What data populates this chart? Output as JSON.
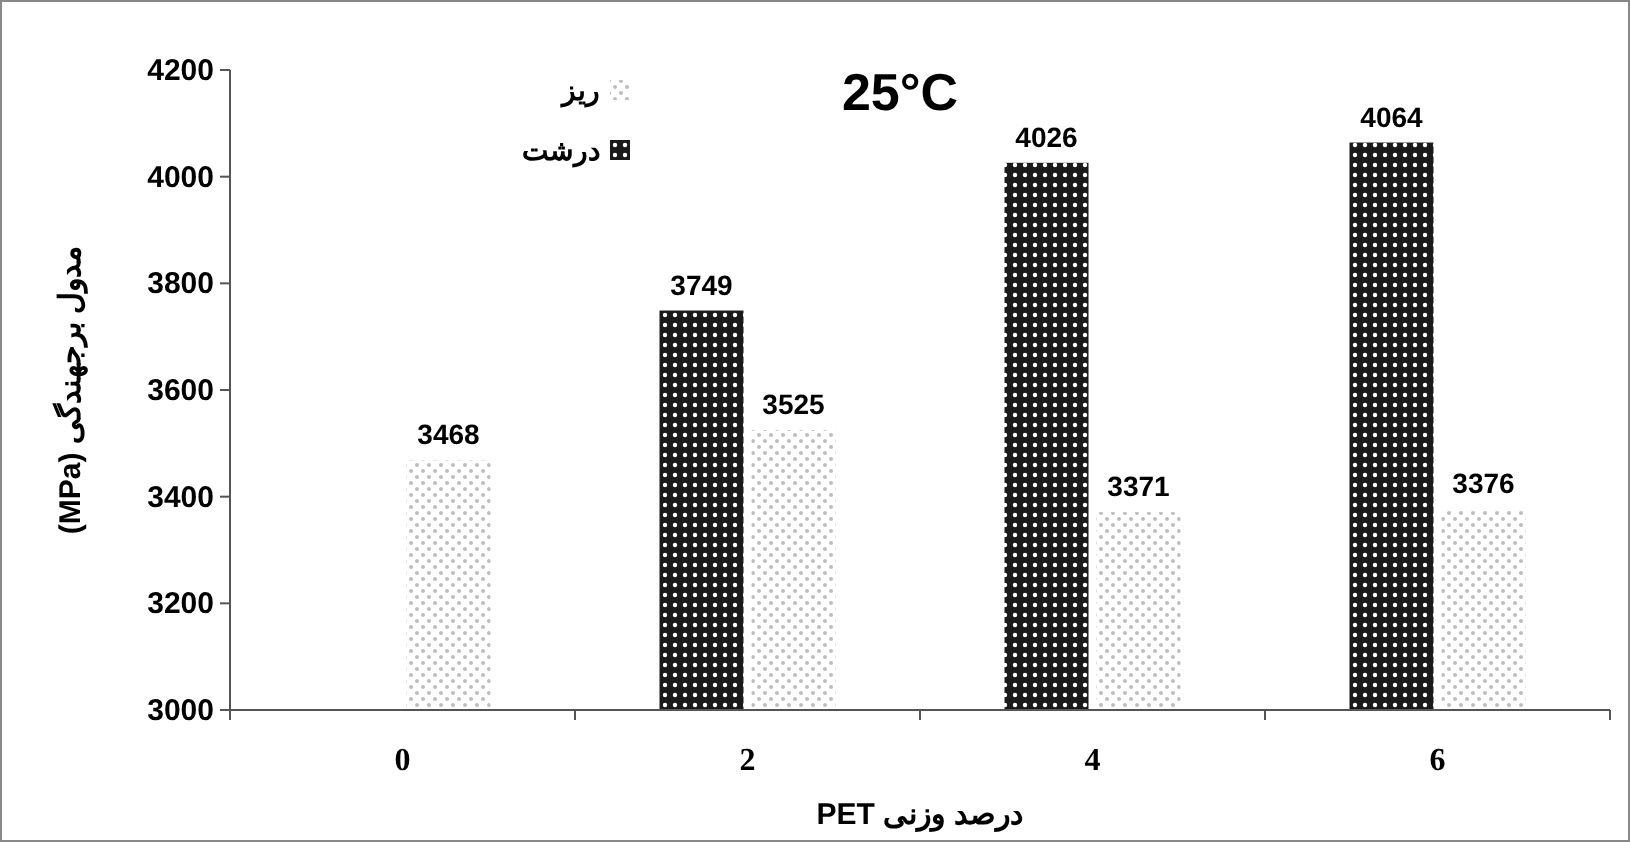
{
  "chart_data": {
    "type": "bar",
    "title": "25°C",
    "xlabel": "درصد وزنی PET",
    "ylabel": "مدول برجهندگی (MPa)",
    "categories": [
      "0",
      "2",
      "4",
      "6"
    ],
    "series": [
      {
        "name": "درشت",
        "color": "#1a1a1a",
        "values": [
          null,
          3749,
          4026,
          4064
        ]
      },
      {
        "name": "ریز",
        "color": "#bdbdbd",
        "values": [
          3468,
          3525,
          3371,
          3376
        ]
      }
    ],
    "ylim": [
      3000,
      4200
    ],
    "yticks": [
      3000,
      3200,
      3400,
      3600,
      3800,
      4000,
      4200
    ],
    "data_labels": true,
    "legend": "top left",
    "grid": false
  }
}
